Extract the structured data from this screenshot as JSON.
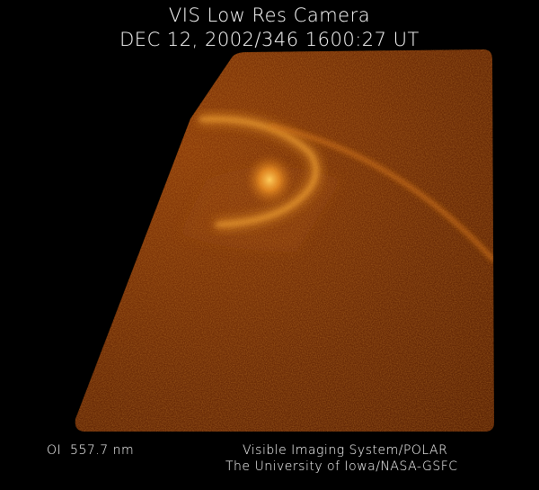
{
  "header": {
    "title": "VIS Low Res Camera",
    "timestamp": "DEC 12, 2002/346 1600:27 UT"
  },
  "footer": {
    "wavelength": "OI  557.7 nm",
    "credit_line1": "Visible Imaging System/POLAR",
    "credit_line2": "The University of Iowa/NASA-GSFC"
  },
  "colors": {
    "background": "#000000",
    "image_base": "#6a2a06",
    "aurora_glow": "#ffb030",
    "text": "#ffffff"
  }
}
